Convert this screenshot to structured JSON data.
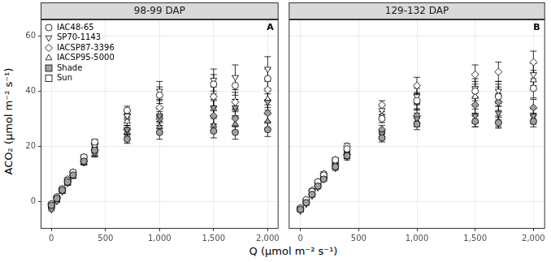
{
  "chart_data": {
    "type": "scatter",
    "x_label": "Q (μmol m⁻² s⁻¹)",
    "y_label": "ACO₂ (μmol m⁻² s⁻¹)",
    "legend": "top-left",
    "grid": true,
    "xlim": [
      -100,
      2100
    ],
    "xticks": [
      0,
      500,
      1000,
      1500,
      2000
    ],
    "ylim": [
      -10,
      66
    ],
    "yticks": [
      0,
      20,
      40,
      60
    ],
    "panels": [
      {
        "title": "98-99 DAP",
        "annotation": "A",
        "x": [
          0,
          50,
          100,
          150,
          200,
          300,
          400,
          700,
          1000,
          1500,
          1700,
          2000
        ],
        "series": [
          {
            "name": "IAC48-65",
            "treatment": "Shade",
            "marker": "circle",
            "color": "#a0a0a0",
            "values": [
              -1.5,
              1,
              4,
              7,
              9.5,
              14.5,
              18.5,
              22.5,
              25,
              25.5,
              25,
              26
            ],
            "errors": [
              0.5,
              0.5,
              0.5,
              0.6,
              0.7,
              0.8,
              1,
              1.5,
              2.5,
              2.5,
              2.5,
              2.5
            ]
          },
          {
            "name": "IAC48-65",
            "treatment": "Sun",
            "marker": "circle",
            "color": "#ffffff",
            "values": [
              -1,
              1.5,
              4.5,
              7.5,
              10.5,
              16,
              21.5,
              33,
              38.5,
              42.5,
              42,
              44.5
            ],
            "errors": [
              0.5,
              0.5,
              0.5,
              0.6,
              0.7,
              0.8,
              1,
              1.5,
              3,
              3.5,
              3.5,
              3.5
            ]
          },
          {
            "name": "SP70-1143",
            "treatment": "Shade",
            "marker": "triangle-down",
            "color": "#a0a0a0",
            "values": [
              -3,
              0,
              3.5,
              6.5,
              9.5,
              14,
              17.5,
              26,
              31,
              34,
              34,
              36
            ],
            "errors": [
              0.5,
              0.5,
              0.5,
              0.6,
              0.7,
              0.8,
              1,
              1.5,
              2.5,
              3,
              3,
              3
            ]
          },
          {
            "name": "SP70-1143",
            "treatment": "Sun",
            "marker": "triangle-down",
            "color": "#ffffff",
            "values": [
              -2.5,
              0.5,
              4,
              7,
              10,
              15.5,
              20,
              31,
              40,
              44,
              45,
              48
            ],
            "errors": [
              0.5,
              0.5,
              0.5,
              0.6,
              0.7,
              0.8,
              1,
              1.5,
              3.5,
              4,
              4.5,
              4.5
            ]
          },
          {
            "name": "IACSP87-3396",
            "treatment": "Shade",
            "marker": "diamond",
            "color": "#a0a0a0",
            "values": [
              -1.5,
              1,
              4,
              7,
              9.5,
              14.5,
              18.5,
              26,
              30,
              31,
              30,
              32
            ],
            "errors": [
              0.5,
              0.5,
              0.5,
              0.6,
              0.7,
              0.8,
              1,
              1.5,
              2.5,
              3,
              3,
              3
            ]
          },
          {
            "name": "IACSP87-3396",
            "treatment": "Sun",
            "marker": "diamond",
            "color": "#ffffff",
            "values": [
              -1,
              1.5,
              4.5,
              8,
              10.5,
              16,
              21,
              31.5,
              34,
              38,
              36,
              40.5
            ],
            "errors": [
              0.5,
              0.5,
              0.5,
              0.6,
              0.7,
              0.8,
              1,
              1.5,
              3,
              3.5,
              3.5,
              3.5
            ]
          },
          {
            "name": "IACSP95-5000",
            "treatment": "Shade",
            "marker": "triangle",
            "color": "#a0a0a0",
            "values": [
              -2,
              0.5,
              3.5,
              6.5,
              9,
              14,
              17,
              25,
              27,
              27.5,
              28,
              29
            ],
            "errors": [
              0.5,
              0.5,
              0.5,
              0.6,
              0.7,
              0.8,
              1,
              1.5,
              2,
              2.5,
              2.5,
              2.5
            ]
          },
          {
            "name": "IACSP95-5000",
            "treatment": "Sun",
            "marker": "triangle",
            "color": "#ffffff",
            "values": [
              -1.5,
              1,
              4,
              7.5,
              10,
              15,
              19.5,
              29,
              31.5,
              33.5,
              34,
              37
            ],
            "errors": [
              0.5,
              0.5,
              0.5,
              0.6,
              0.7,
              0.8,
              1,
              1.5,
              2.5,
              3,
              3,
              3
            ]
          }
        ]
      },
      {
        "title": "129-132 DAP",
        "annotation": "B",
        "tick_labels": "x",
        "x": [
          0,
          50,
          100,
          150,
          200,
          300,
          400,
          700,
          1000,
          1500,
          1700,
          2000
        ],
        "series": [
          {
            "name": "IAC48-65",
            "treatment": "Shade",
            "marker": "circle",
            "color": "#a0a0a0",
            "values": [
              -3,
              -0.5,
              2.5,
              5.5,
              8,
              12.5,
              16.5,
              23,
              28,
              29,
              28.5,
              29
            ],
            "errors": [
              0.5,
              0.5,
              0.5,
              0.6,
              0.7,
              0.8,
              1,
              1.5,
              2,
              2,
              2,
              2
            ]
          },
          {
            "name": "IAC48-65",
            "treatment": "Sun",
            "marker": "circle",
            "color": "#ffffff",
            "values": [
              -2.5,
              0.5,
              3.5,
              7,
              9.5,
              15,
              19,
              30,
              36.5,
              40,
              38,
              41
            ],
            "errors": [
              0.5,
              0.5,
              0.5,
              0.6,
              0.7,
              0.8,
              1,
              1.5,
              3,
              3.5,
              3.5,
              3.5
            ]
          },
          {
            "name": "SP70-1143",
            "treatment": "Shade",
            "marker": "triangle-down",
            "color": "#a0a0a0",
            "values": [
              -3.5,
              -1,
              2,
              5,
              8,
              12,
              16,
              24.5,
              30,
              31,
              32,
              31
            ],
            "errors": [
              0.5,
              0.5,
              0.5,
              0.6,
              0.7,
              0.8,
              1,
              1.5,
              2,
              2.5,
              2.5,
              2.5
            ]
          },
          {
            "name": "SP70-1143",
            "treatment": "Sun",
            "marker": "triangle-down",
            "color": "#ffffff",
            "values": [
              -3,
              0,
              3,
              6,
              9,
              14,
              18.5,
              33,
              38,
              41,
              40,
              46
            ],
            "errors": [
              0.5,
              0.5,
              0.5,
              0.6,
              0.7,
              0.8,
              1,
              1.5,
              3,
              3.5,
              3.5,
              4
            ]
          },
          {
            "name": "IACSP87-3396",
            "treatment": "Shade",
            "marker": "diamond",
            "color": "#a0a0a0",
            "values": [
              -3,
              -0.5,
              2.5,
              5.5,
              8.5,
              13,
              17,
              26,
              31,
              35,
              36,
              34
            ],
            "errors": [
              0.5,
              0.5,
              0.5,
              0.6,
              0.7,
              0.8,
              1,
              1.5,
              2.5,
              3,
              3,
              3
            ]
          },
          {
            "name": "IACSP87-3396",
            "treatment": "Sun",
            "marker": "diamond",
            "color": "#ffffff",
            "values": [
              -2.5,
              0.5,
              4,
              7,
              10,
              15,
              20,
              35,
              42,
              46,
              47,
              50.5
            ],
            "errors": [
              0.5,
              0.5,
              0.5,
              0.6,
              0.7,
              0.8,
              1,
              1.5,
              3,
              3.5,
              3.5,
              4
            ]
          },
          {
            "name": "IACSP95-5000",
            "treatment": "Shade",
            "marker": "triangle",
            "color": "#a0a0a0",
            "values": [
              -3,
              -0.5,
              2.5,
              5.5,
              8.5,
              12.5,
              16.5,
              24,
              29,
              29,
              29,
              30
            ],
            "errors": [
              0.5,
              0.5,
              0.5,
              0.6,
              0.7,
              0.8,
              1,
              1.5,
              2,
              2,
              2,
              2
            ]
          },
          {
            "name": "IACSP95-5000",
            "treatment": "Sun",
            "marker": "triangle",
            "color": "#ffffff",
            "values": [
              -2.5,
              0,
              3.5,
              6.5,
              9.5,
              14.5,
              19,
              31,
              36,
              38,
              39,
              44
            ],
            "errors": [
              0.5,
              0.5,
              0.5,
              0.6,
              0.7,
              0.8,
              1,
              1.5,
              3,
              3.5,
              3.5,
              3.5
            ]
          }
        ]
      }
    ]
  }
}
